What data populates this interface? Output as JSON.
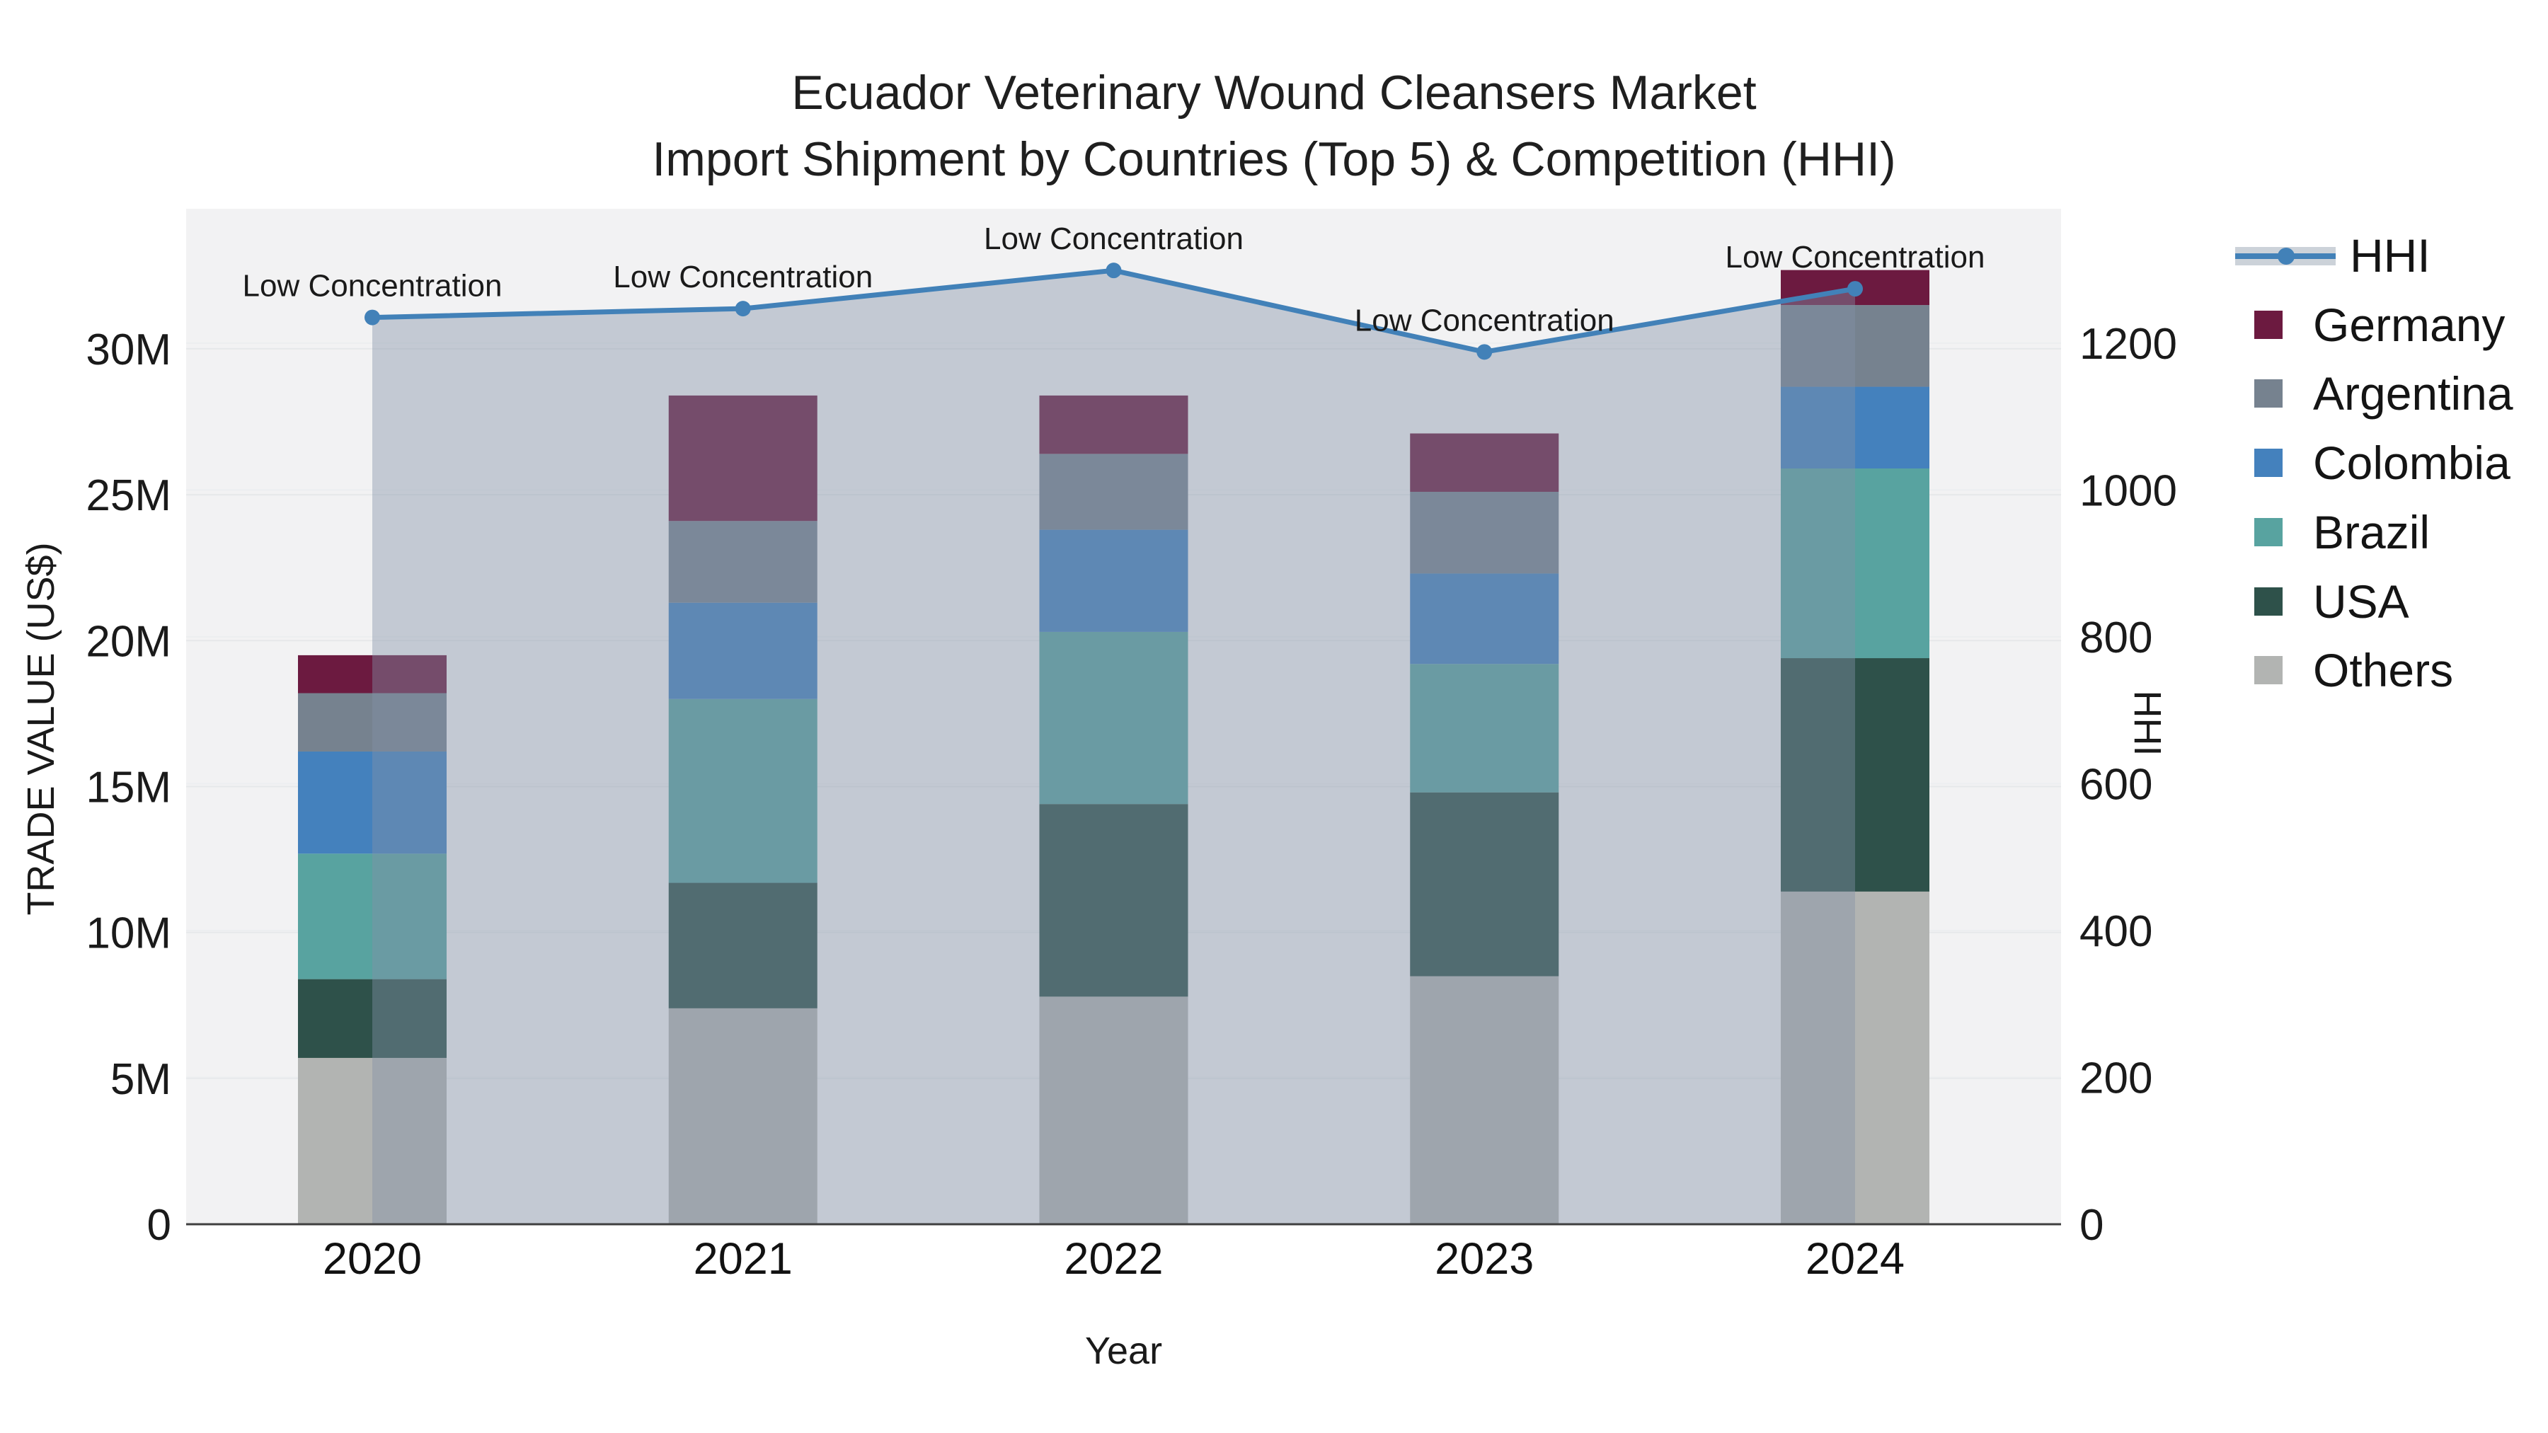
{
  "title": {
    "line1": "Ecuador Veterinary Wound Cleansers Market",
    "line2": "Import Shipment by Countries (Top 5) & Competition (HHI)"
  },
  "colors": {
    "page_background": "#ffffff",
    "plot_background": "#f2f2f3",
    "hhi_line": "#4281b8",
    "hhi_fill": "rgba(130,146,166,0.42)",
    "axis_line": "#3f3f3f"
  },
  "chart_data": {
    "type": "bar",
    "subtype": "stacked bars with HHI line overlay and shaded area fill",
    "categories": [
      "2020",
      "2021",
      "2022",
      "2023",
      "2024"
    ],
    "value_unit": "millions of US$",
    "series": [
      {
        "name": "Others",
        "color": "#b2b4b2",
        "values": [
          5.7,
          7.4,
          7.8,
          8.5,
          11.4
        ]
      },
      {
        "name": "USA",
        "color": "#2e514a",
        "values": [
          2.7,
          4.3,
          6.6,
          6.3,
          8.0
        ]
      },
      {
        "name": "Brazil",
        "color": "#58a3a0",
        "values": [
          4.3,
          6.3,
          5.9,
          4.4,
          6.5
        ]
      },
      {
        "name": "Colombia",
        "color": "#4481bd",
        "values": [
          3.5,
          3.3,
          3.5,
          3.1,
          2.8
        ]
      },
      {
        "name": "Argentina",
        "color": "#76828f",
        "values": [
          2.0,
          2.8,
          2.6,
          2.8,
          2.8
        ]
      },
      {
        "name": "Germany",
        "color": "#6c1a40",
        "values": [
          1.3,
          4.3,
          2.0,
          2.0,
          1.2
        ]
      }
    ],
    "line": {
      "name": "HHI",
      "color": "#4281b8",
      "fill_color": "rgba(130,146,166,0.42)",
      "values": [
        1235,
        1247,
        1299,
        1188,
        1274
      ],
      "point_labels": [
        "Low Concentration",
        "Low Concentration",
        "Low Concentration",
        "Low Concentration",
        "Low Concentration"
      ]
    },
    "x_axis": {
      "title": "Year",
      "tick_labels": [
        "2020",
        "2021",
        "2022",
        "2023",
        "2024"
      ]
    },
    "y_left": {
      "title": "TRADE VALUE (US$)",
      "tick_labels": [
        "0",
        "5M",
        "10M",
        "15M",
        "20M",
        "25M",
        "30M"
      ],
      "tick_values_M": [
        0,
        5,
        10,
        15,
        20,
        25,
        30
      ],
      "max_M": 34.8,
      "grid": true
    },
    "y_right": {
      "title": "HHI",
      "tick_labels": [
        "0",
        "200",
        "400",
        "600",
        "800",
        "1000",
        "1200"
      ],
      "tick_values": [
        0,
        200,
        400,
        600,
        800,
        1000,
        1200
      ],
      "max": 1383,
      "grid": true
    },
    "legend": {
      "position": "right",
      "entries": [
        "HHI",
        "Germany",
        "Argentina",
        "Colombia",
        "Brazil",
        "USA",
        "Others"
      ]
    }
  }
}
